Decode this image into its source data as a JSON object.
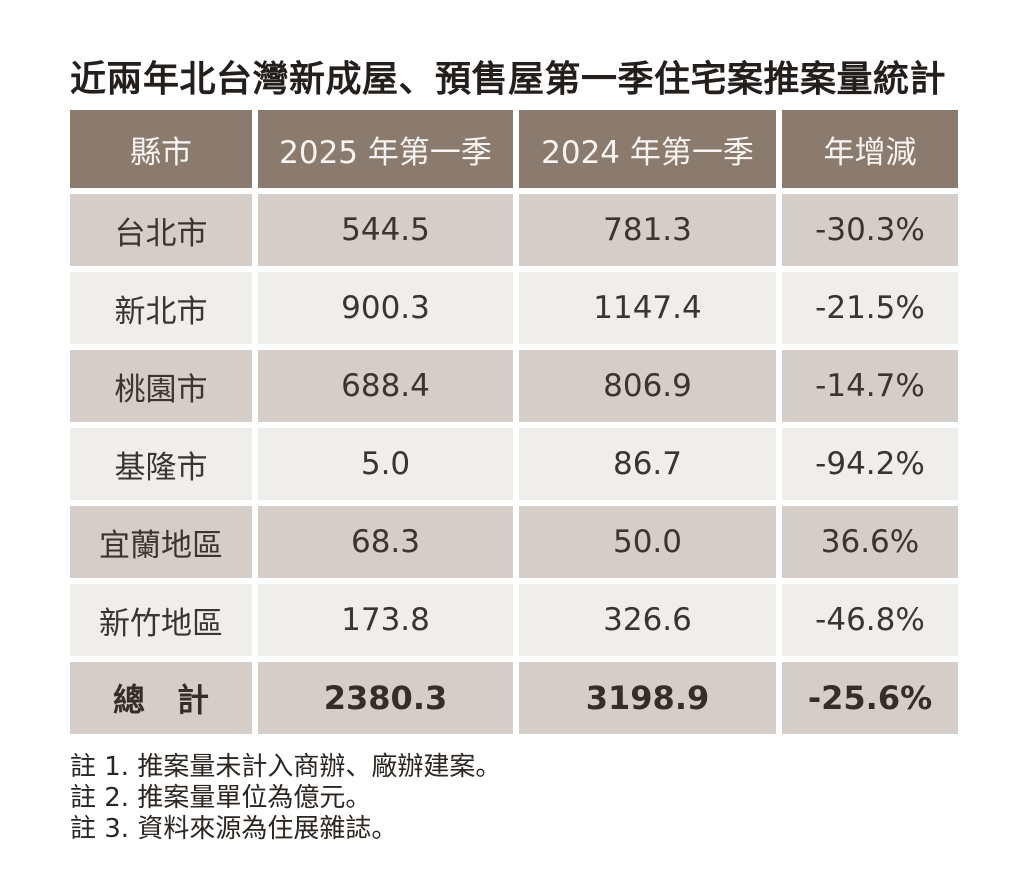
{
  "page": {
    "title": "近兩年北台灣新成屋、預售屋第一季住宅案推案量統計"
  },
  "table": {
    "headers": [
      "縣市",
      "2025 年第一季",
      "2024 年第一季",
      "年增減"
    ],
    "rows": [
      [
        "台北市",
        "544.5",
        "781.3",
        "-30.3%"
      ],
      [
        "新北市",
        "900.3",
        "1147.4",
        "-21.5%"
      ],
      [
        "桃園市",
        "688.4",
        "806.9",
        "-14.7%"
      ],
      [
        "基隆市",
        "5.0",
        "86.7",
        "-94.2%"
      ],
      [
        "宜蘭地區",
        "68.3",
        "50.0",
        "36.6%"
      ],
      [
        "新竹地區",
        "173.8",
        "326.6",
        "-46.8%"
      ]
    ],
    "total_row": [
      "總　計",
      "2380.3",
      "3198.9",
      "-25.6%"
    ]
  },
  "notes": [
    "註 1. 推案量未計入商辦、廠辦建案。",
    "註 2. 推案量單位為億元。",
    "註 3. 資料來源為住展雜誌。"
  ],
  "colors": {
    "header_bg": "#8B7B6E",
    "header_text": "#F7F4F1",
    "row_shade_bg": "#D4CDC8",
    "row_light_bg": "#F0EEEA",
    "cell_text": "#3B3430",
    "title_text": "#241F1C",
    "page_bg": "#FFFFFF"
  },
  "chart_data": {
    "type": "table",
    "title": "近兩年北台灣新成屋、預售屋第一季住宅案推案量統計",
    "columns": [
      "縣市",
      "2025 年第一季",
      "2024 年第一季",
      "年增減"
    ],
    "rows": [
      {
        "city": "台北市",
        "q1_2025": 544.5,
        "q1_2024": 781.3,
        "yoy_change_pct": -30.3
      },
      {
        "city": "新北市",
        "q1_2025": 900.3,
        "q1_2024": 1147.4,
        "yoy_change_pct": -21.5
      },
      {
        "city": "桃園市",
        "q1_2025": 688.4,
        "q1_2024": 806.9,
        "yoy_change_pct": -14.7
      },
      {
        "city": "基隆市",
        "q1_2025": 5.0,
        "q1_2024": 86.7,
        "yoy_change_pct": -94.2
      },
      {
        "city": "宜蘭地區",
        "q1_2025": 68.3,
        "q1_2024": 50.0,
        "yoy_change_pct": 36.6
      },
      {
        "city": "新竹地區",
        "q1_2025": 173.8,
        "q1_2024": 326.6,
        "yoy_change_pct": -46.8
      },
      {
        "city": "總計",
        "q1_2025": 2380.3,
        "q1_2024": 3198.9,
        "yoy_change_pct": -25.6
      }
    ],
    "unit": "億元",
    "notes": [
      "推案量未計入商辦、廠辦建案",
      "推案量單位為億元",
      "資料來源為住展雜誌"
    ]
  }
}
